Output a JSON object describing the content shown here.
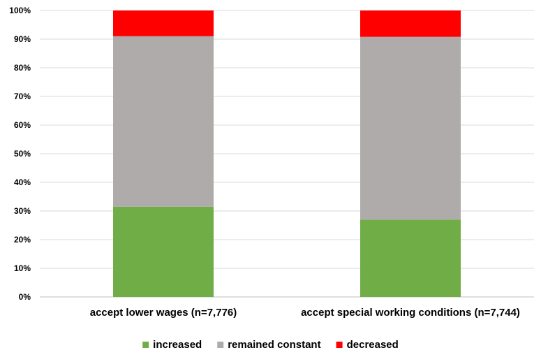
{
  "chart_data": {
    "type": "bar",
    "stacked": true,
    "percent": true,
    "categories": [
      "accept lower wages (n=7,776)",
      "accept special working conditions (n=7,744)"
    ],
    "series": [
      {
        "name": "increased",
        "color": "#70ad47",
        "values": [
          31.5,
          27.0
        ]
      },
      {
        "name": "remained constant",
        "color": "#afabab",
        "values": [
          59.5,
          63.8
        ]
      },
      {
        "name": "decreased",
        "color": "#ff0000",
        "values": [
          9.0,
          9.2
        ]
      }
    ],
    "yticks": [
      "0%",
      "10%",
      "20%",
      "30%",
      "40%",
      "50%",
      "60%",
      "70%",
      "80%",
      "90%",
      "100%"
    ],
    "ylim": [
      0,
      100
    ],
    "grid": true,
    "legend": "bottom"
  }
}
